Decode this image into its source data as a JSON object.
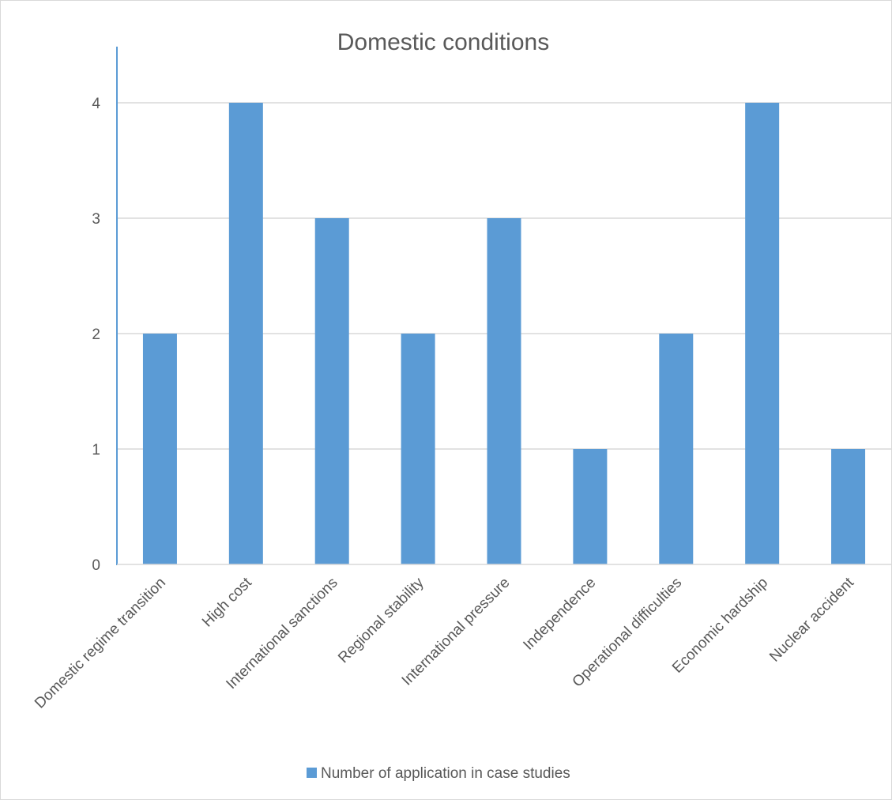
{
  "chart_data": {
    "type": "bar",
    "title": "Domestic conditions",
    "categories": [
      "Domestic regime transition",
      "High cost",
      "International sanctions",
      "Regional stability",
      "International pressure",
      "Independence",
      "Operational difficulties",
      "Economic hardship",
      "Nuclear accident"
    ],
    "series": [
      {
        "name": "Number of application in case studies",
        "values": [
          2,
          4,
          3,
          2,
          3,
          1,
          2,
          4,
          1
        ],
        "color": "#5b9bd5"
      }
    ],
    "ylim": [
      0,
      4
    ],
    "yticks": [
      "0",
      "1",
      "2",
      "3",
      "4"
    ],
    "grid": true,
    "legend_position": "bottom"
  }
}
